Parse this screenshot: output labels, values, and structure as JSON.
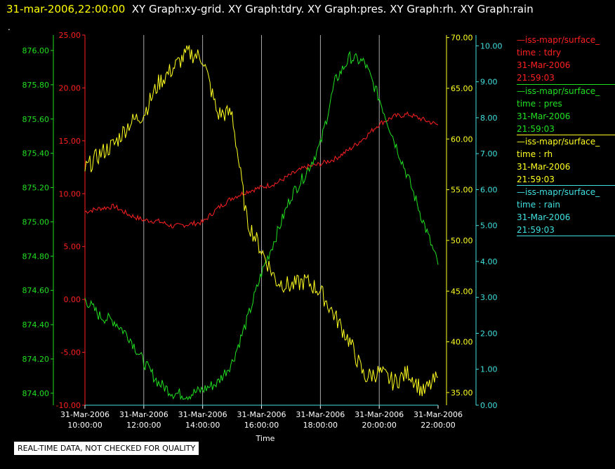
{
  "header": {
    "timestamp": "31-mar-2006,22:00:00",
    "graphs": "XY Graph:xy-grid.  XY Graph:tdry.  XY Graph:pres.  XY Graph:rh.  XY Graph:rain",
    "dot": "."
  },
  "colors": {
    "tdry": "#ff2020",
    "pres": "#20e020",
    "rh": "#ffff20",
    "rain": "#40e0e0",
    "grid": "#d0d0d0"
  },
  "legend": [
    {
      "source": "iss-mapr/surface_",
      "label": "time : tdry",
      "date": "31-Mar-2006",
      "time": "21:59:03",
      "color": "#ff2020"
    },
    {
      "source": "iss-mapr/surface_",
      "label": "time : pres",
      "date": "31-Mar-2006",
      "time": "21:59:03",
      "color": "#20e020"
    },
    {
      "source": "iss-mapr/surface_",
      "label": "time : rh",
      "date": "31-Mar-2006",
      "time": "21:59:03",
      "color": "#ffff20"
    },
    {
      "source": "iss-mapr/surface_",
      "label": "time : rain",
      "date": "31-Mar-2006",
      "time": "21:59:03",
      "color": "#40e0e0"
    }
  ],
  "note": "REAL-TIME DATA, NOT CHECKED FOR QUALITY",
  "chart_data": {
    "type": "line",
    "xlabel": "Time",
    "x_ticks": [
      [
        "31-Mar-2006",
        "10:00:00"
      ],
      [
        "31-Mar-2006",
        "12:00:00"
      ],
      [
        "31-Mar-2006",
        "14:00:00"
      ],
      [
        "31-Mar-2006",
        "16:00:00"
      ],
      [
        "31-Mar-2006",
        "18:00:00"
      ],
      [
        "31-Mar-2006",
        "20:00:00"
      ],
      [
        "31-Mar-2006",
        "22:00:00"
      ]
    ],
    "xlim_hours": [
      10,
      22
    ],
    "grid": "vertical at each x tick",
    "axes": {
      "pres": {
        "ylim": [
          873.93,
          876.09
        ],
        "ticks": [
          "874.00",
          "874.20",
          "874.40",
          "874.60",
          "874.80",
          "875.00",
          "875.20",
          "875.40",
          "875.60",
          "875.80",
          "876.00"
        ]
      },
      "tdry": {
        "ylim": [
          -10,
          25
        ],
        "ticks": [
          "-10.00",
          "-5.00",
          "0.00",
          "5.00",
          "10.00",
          "15.00",
          "20.00",
          "25.00"
        ]
      },
      "rh": {
        "ylim": [
          33.75,
          70.25
        ],
        "ticks": [
          "35.00",
          "40.00",
          "45.00",
          "50.00",
          "55.00",
          "60.00",
          "65.00",
          "70.00"
        ]
      },
      "rain": {
        "ylim": [
          0,
          10.3
        ],
        "ticks": [
          "0.00",
          "1.00",
          "2.00",
          "3.00",
          "4.00",
          "5.00",
          "6.00",
          "7.00",
          "8.00",
          "9.00",
          "10.00"
        ]
      }
    },
    "series": [
      {
        "name": "tdry",
        "axis": "tdry",
        "x": [
          10,
          10.5,
          11,
          11.5,
          12,
          12.5,
          13,
          13.5,
          14,
          14.5,
          15,
          15.5,
          16,
          16.5,
          17,
          17.5,
          18,
          18.5,
          19,
          19.5,
          20,
          20.5,
          21,
          21.5,
          22
        ],
        "y": [
          8.3,
          8.6,
          8.8,
          8.0,
          7.5,
          7.4,
          6.9,
          7.1,
          7.3,
          8.6,
          9.6,
          10.2,
          10.6,
          11.0,
          11.8,
          12.5,
          12.8,
          13.3,
          14.2,
          15.3,
          16.6,
          17.3,
          17.5,
          17.0,
          16.5
        ]
      },
      {
        "name": "pres",
        "axis": "pres",
        "x": [
          10,
          10.5,
          11,
          11.5,
          12,
          12.5,
          13,
          13.5,
          14,
          14.5,
          15,
          15.5,
          16,
          16.5,
          17,
          17.5,
          18,
          18.5,
          19,
          19.5,
          20,
          20.5,
          21,
          21.5,
          22
        ],
        "y": [
          874.55,
          874.45,
          874.42,
          874.33,
          874.18,
          874.06,
          874.0,
          873.99,
          874.02,
          874.06,
          874.18,
          874.42,
          874.7,
          874.92,
          875.15,
          875.28,
          875.45,
          875.82,
          875.96,
          875.93,
          875.72,
          875.48,
          875.25,
          875.0,
          874.75
        ]
      },
      {
        "name": "rh",
        "axis": "rh",
        "x": [
          10,
          10.5,
          11,
          11.5,
          12,
          12.5,
          13,
          13.5,
          14,
          14.5,
          15,
          15.5,
          16,
          16.5,
          17,
          17.5,
          18,
          18.5,
          19,
          19.5,
          20,
          20.5,
          21,
          21.5,
          22
        ],
        "y": [
          57.0,
          58.5,
          59.5,
          61.5,
          62.5,
          65.5,
          67.0,
          68.5,
          68.0,
          62.5,
          62.5,
          52.0,
          49.0,
          46.0,
          45.5,
          46.0,
          45.0,
          42.5,
          40.0,
          36.5,
          37.0,
          36.0,
          37.0,
          35.0,
          36.5
        ]
      },
      {
        "name": "rain",
        "axis": "rain",
        "x": [
          10,
          22
        ],
        "y": [
          0,
          0
        ]
      }
    ]
  }
}
